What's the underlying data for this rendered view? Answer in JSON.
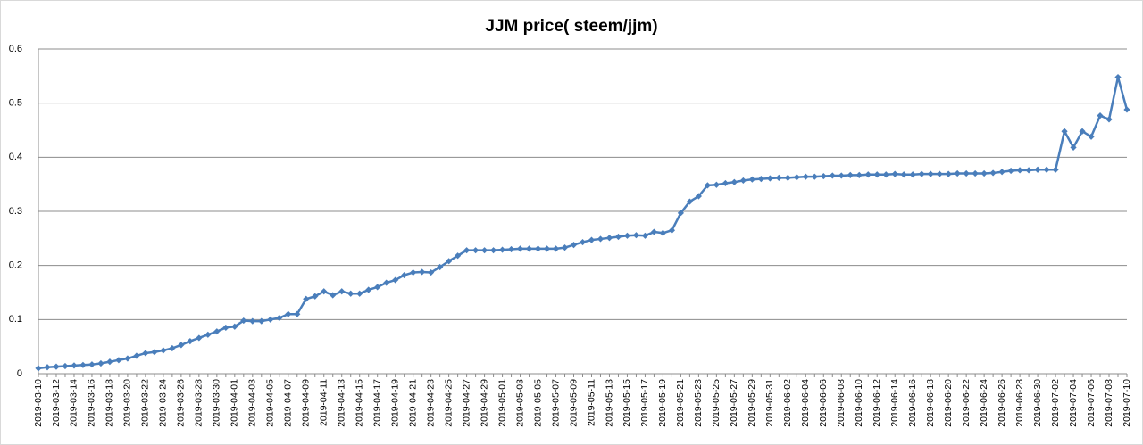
{
  "chart_data": {
    "type": "line",
    "title": "JJM price( steem/jjm)",
    "categories": [
      "2019-03-10",
      null,
      "2019-03-12",
      null,
      "2019-03-14",
      null,
      "2019-03-16",
      null,
      "2019-03-18",
      null,
      "2019-03-20",
      null,
      "2019-03-22",
      null,
      "2019-03-24",
      null,
      "2019-03-26",
      null,
      "2019-03-28",
      null,
      "2019-03-30",
      null,
      "2019-04-01",
      null,
      "2019-04-03",
      null,
      "2019-04-05",
      null,
      "2019-04-07",
      null,
      "2019-04-09",
      null,
      "2019-04-11",
      null,
      "2019-04-13",
      null,
      "2019-04-15",
      null,
      "2019-04-17",
      null,
      "2019-04-19",
      null,
      "2019-04-21",
      null,
      "2019-04-23",
      null,
      "2019-04-25",
      null,
      "2019-04-27",
      null,
      "2019-04-29",
      null,
      "2019-05-01",
      null,
      "2019-05-03",
      null,
      "2019-05-05",
      null,
      "2019-05-07",
      null,
      "2019-05-09",
      null,
      "2019-05-11",
      null,
      "2019-05-13",
      null,
      "2019-05-15",
      null,
      "2019-05-17",
      null,
      "2019-05-19",
      null,
      "2019-05-21",
      null,
      "2019-05-23",
      null,
      "2019-05-25",
      null,
      "2019-05-27",
      null,
      "2019-05-29",
      null,
      "2019-05-31",
      null,
      "2019-06-02",
      null,
      "2019-06-04",
      null,
      "2019-06-06",
      null,
      "2019-06-08",
      null,
      "2019-06-10",
      null,
      "2019-06-12",
      null,
      "2019-06-14",
      null,
      "2019-06-16",
      null,
      "2019-06-18",
      null,
      "2019-06-20",
      null,
      "2019-06-22",
      null,
      "2019-06-24",
      null,
      "2019-06-26",
      null,
      "2019-06-28",
      null,
      "2019-06-30",
      null,
      "2019-07-02",
      null,
      "2019-07-04",
      null,
      "2019-07-06",
      null,
      "2019-07-08",
      null,
      "2019-07-10"
    ],
    "values": [
      0.01,
      0.012,
      0.013,
      0.014,
      0.015,
      0.016,
      0.017,
      0.019,
      0.022,
      0.025,
      0.028,
      0.033,
      0.038,
      0.04,
      0.043,
      0.047,
      0.053,
      0.06,
      0.066,
      0.072,
      0.078,
      0.085,
      0.087,
      0.098,
      0.097,
      0.097,
      0.1,
      0.103,
      0.11,
      0.11,
      0.138,
      0.143,
      0.152,
      0.145,
      0.152,
      0.148,
      0.148,
      0.155,
      0.16,
      0.168,
      0.173,
      0.182,
      0.187,
      0.188,
      0.187,
      0.197,
      0.208,
      0.218,
      0.228,
      0.228,
      0.228,
      0.228,
      0.229,
      0.23,
      0.231,
      0.231,
      0.231,
      0.231,
      0.231,
      0.233,
      0.238,
      0.243,
      0.247,
      0.249,
      0.251,
      0.253,
      0.255,
      0.256,
      0.255,
      0.262,
      0.26,
      0.265,
      0.297,
      0.318,
      0.328,
      0.348,
      0.349,
      0.352,
      0.354,
      0.357,
      0.359,
      0.36,
      0.361,
      0.362,
      0.362,
      0.363,
      0.364,
      0.364,
      0.365,
      0.366,
      0.366,
      0.367,
      0.367,
      0.368,
      0.368,
      0.368,
      0.369,
      0.368,
      0.368,
      0.369,
      0.369,
      0.369,
      0.369,
      0.37,
      0.37,
      0.37,
      0.37,
      0.371,
      0.373,
      0.375,
      0.376,
      0.376,
      0.377,
      0.377,
      0.377,
      0.448,
      0.418,
      0.448,
      0.438,
      0.477,
      0.47,
      0.548,
      0.488
    ],
    "color": "#4a7ebb",
    "ylim": [
      0,
      0.6
    ],
    "yticks": [
      0,
      0.1,
      0.2,
      0.3,
      0.4,
      0.5,
      0.6
    ],
    "grid": true
  }
}
